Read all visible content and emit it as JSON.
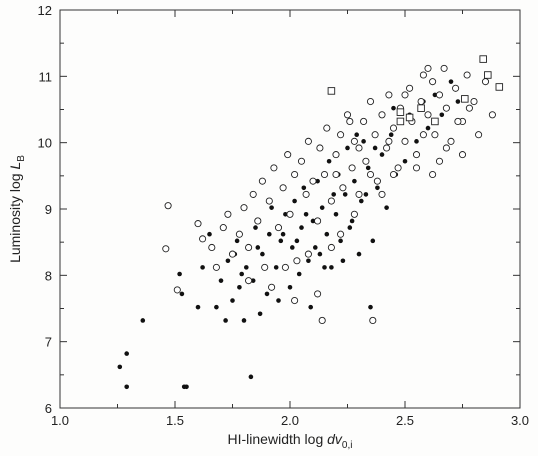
{
  "chart_data": {
    "type": "scatter",
    "title": "",
    "xlabel_main": "HI-linewidth  log ",
    "xlabel_var": "dv",
    "xlabel_sub": "0,i",
    "ylabel_main": "Luminosity  log ",
    "ylabel_var": "L",
    "ylabel_sub": "B",
    "xlim": [
      1.0,
      3.0
    ],
    "ylim": [
      6,
      12
    ],
    "x_ticks": [
      1.0,
      1.5,
      2.0,
      2.5,
      3.0
    ],
    "x_tick_labels": [
      "1.0",
      "1.5",
      "2.0",
      "2.5",
      "3.0"
    ],
    "y_ticks": [
      6,
      7,
      8,
      9,
      10,
      11,
      12
    ],
    "y_tick_labels": [
      "6",
      "7",
      "8",
      "9",
      "10",
      "11",
      "12"
    ],
    "grid": false,
    "legend": "none",
    "series": [
      {
        "marker": "filled-circle",
        "points": [
          [
            1.26,
            6.62
          ],
          [
            1.29,
            6.82
          ],
          [
            1.29,
            6.32
          ],
          [
            1.36,
            7.32
          ],
          [
            1.52,
            8.02
          ],
          [
            1.53,
            7.72
          ],
          [
            1.55,
            6.32
          ],
          [
            1.54,
            6.32
          ],
          [
            1.6,
            7.52
          ],
          [
            1.62,
            8.12
          ],
          [
            1.65,
            8.62
          ],
          [
            1.68,
            7.52
          ],
          [
            1.7,
            7.92
          ],
          [
            1.72,
            7.32
          ],
          [
            1.73,
            8.22
          ],
          [
            1.75,
            7.62
          ],
          [
            1.77,
            8.52
          ],
          [
            1.78,
            7.82
          ],
          [
            1.8,
            7.32
          ],
          [
            1.81,
            8.12
          ],
          [
            1.83,
            6.47
          ],
          [
            1.84,
            7.92
          ],
          [
            1.85,
            8.72
          ],
          [
            1.87,
            7.42
          ],
          [
            1.88,
            8.32
          ],
          [
            1.9,
            7.72
          ],
          [
            1.91,
            8.62
          ],
          [
            1.92,
            9.02
          ],
          [
            1.94,
            8.12
          ],
          [
            1.95,
            7.62
          ],
          [
            1.96,
            8.52
          ],
          [
            1.98,
            8.92
          ],
          [
            2.0,
            7.82
          ],
          [
            2.01,
            8.42
          ],
          [
            2.02,
            9.12
          ],
          [
            2.04,
            8.02
          ],
          [
            2.05,
            8.72
          ],
          [
            2.06,
            9.32
          ],
          [
            2.08,
            8.22
          ],
          [
            2.09,
            7.52
          ],
          [
            2.1,
            8.82
          ],
          [
            2.12,
            9.42
          ],
          [
            2.13,
            8.32
          ],
          [
            2.14,
            9.02
          ],
          [
            2.16,
            8.62
          ],
          [
            2.17,
            9.72
          ],
          [
            2.18,
            8.12
          ],
          [
            2.2,
            8.92
          ],
          [
            2.21,
            9.52
          ],
          [
            2.22,
            8.52
          ],
          [
            2.24,
            9.22
          ],
          [
            2.25,
            9.92
          ],
          [
            2.26,
            8.72
          ],
          [
            2.28,
            9.42
          ],
          [
            2.3,
            8.32
          ],
          [
            2.31,
            9.12
          ],
          [
            2.32,
            10.02
          ],
          [
            2.34,
            9.62
          ],
          [
            2.36,
            8.52
          ],
          [
            2.38,
            9.32
          ],
          [
            2.4,
            9.82
          ],
          [
            2.42,
            9.02
          ],
          [
            2.44,
            10.12
          ],
          [
            2.46,
            9.52
          ],
          [
            2.48,
            10.32
          ],
          [
            2.5,
            9.72
          ],
          [
            2.52,
            10.42
          ],
          [
            2.55,
            10.02
          ],
          [
            2.58,
            10.62
          ],
          [
            2.6,
            10.22
          ],
          [
            2.63,
            10.72
          ],
          [
            2.66,
            10.42
          ],
          [
            2.7,
            10.92
          ],
          [
            2.73,
            10.62
          ],
          [
            1.97,
            8.62
          ],
          [
            2.03,
            8.52
          ],
          [
            2.07,
            8.92
          ],
          [
            2.11,
            8.42
          ],
          [
            2.15,
            8.12
          ],
          [
            2.19,
            9.22
          ],
          [
            2.23,
            8.22
          ],
          [
            2.27,
            8.82
          ],
          [
            2.33,
            9.22
          ],
          [
            2.37,
            9.92
          ],
          [
            1.86,
            8.42
          ],
          [
            1.79,
            8.02
          ],
          [
            1.76,
            8.32
          ],
          [
            2.35,
            7.52
          ],
          [
            2.29,
            10.12
          ],
          [
            2.45,
            10.52
          ]
        ]
      },
      {
        "marker": "open-circle",
        "points": [
          [
            1.47,
            9.05
          ],
          [
            1.46,
            8.4
          ],
          [
            1.51,
            7.78
          ],
          [
            1.6,
            8.78
          ],
          [
            1.62,
            8.55
          ],
          [
            1.66,
            8.42
          ],
          [
            1.68,
            8.12
          ],
          [
            1.71,
            8.72
          ],
          [
            1.73,
            8.92
          ],
          [
            1.75,
            8.32
          ],
          [
            1.78,
            8.62
          ],
          [
            1.8,
            9.02
          ],
          [
            1.82,
            8.42
          ],
          [
            1.84,
            9.22
          ],
          [
            1.86,
            8.82
          ],
          [
            1.88,
            9.42
          ],
          [
            1.89,
            8.12
          ],
          [
            1.91,
            9.12
          ],
          [
            1.93,
            9.62
          ],
          [
            1.95,
            8.72
          ],
          [
            1.97,
            9.32
          ],
          [
            1.99,
            9.82
          ],
          [
            2.0,
            8.92
          ],
          [
            2.02,
            9.52
          ],
          [
            2.03,
            8.22
          ],
          [
            2.05,
            9.72
          ],
          [
            2.07,
            9.22
          ],
          [
            2.08,
            10.02
          ],
          [
            2.1,
            9.42
          ],
          [
            2.12,
            8.82
          ],
          [
            2.13,
            9.92
          ],
          [
            2.15,
            9.52
          ],
          [
            2.16,
            10.22
          ],
          [
            2.18,
            9.12
          ],
          [
            2.2,
            9.82
          ],
          [
            2.22,
            10.12
          ],
          [
            2.23,
            9.32
          ],
          [
            2.25,
            10.42
          ],
          [
            2.27,
            9.62
          ],
          [
            2.28,
            10.02
          ],
          [
            2.3,
            9.22
          ],
          [
            2.32,
            10.32
          ],
          [
            2.33,
            9.72
          ],
          [
            2.35,
            10.62
          ],
          [
            2.37,
            10.12
          ],
          [
            2.38,
            9.42
          ],
          [
            2.4,
            10.42
          ],
          [
            2.42,
            9.92
          ],
          [
            2.43,
            10.72
          ],
          [
            2.45,
            10.22
          ],
          [
            2.47,
            9.62
          ],
          [
            2.48,
            10.52
          ],
          [
            2.5,
            10.02
          ],
          [
            2.52,
            10.82
          ],
          [
            2.53,
            10.32
          ],
          [
            2.55,
            9.82
          ],
          [
            2.57,
            10.62
          ],
          [
            2.58,
            11.02
          ],
          [
            2.6,
            10.42
          ],
          [
            2.62,
            10.92
          ],
          [
            2.63,
            10.12
          ],
          [
            2.65,
            10.72
          ],
          [
            2.67,
            11.12
          ],
          [
            2.68,
            10.52
          ],
          [
            2.7,
            10.02
          ],
          [
            2.72,
            10.82
          ],
          [
            2.75,
            10.32
          ],
          [
            2.77,
            11.02
          ],
          [
            2.8,
            10.62
          ],
          [
            2.82,
            10.12
          ],
          [
            2.85,
            10.92
          ],
          [
            2.88,
            10.42
          ],
          [
            2.6,
            11.12
          ],
          [
            2.62,
            9.52
          ],
          [
            2.55,
            9.62
          ],
          [
            2.45,
            9.52
          ],
          [
            2.4,
            9.22
          ],
          [
            2.35,
            9.52
          ],
          [
            2.28,
            8.92
          ],
          [
            2.22,
            8.62
          ],
          [
            2.18,
            8.42
          ],
          [
            2.12,
            7.72
          ],
          [
            2.08,
            8.32
          ],
          [
            2.02,
            7.62
          ],
          [
            1.98,
            8.12
          ],
          [
            1.92,
            7.82
          ],
          [
            1.82,
            7.92
          ],
          [
            2.14,
            7.32
          ],
          [
            2.36,
            7.32
          ],
          [
            2.75,
            9.82
          ],
          [
            2.68,
            9.92
          ],
          [
            2.43,
            10.02
          ],
          [
            2.3,
            9.92
          ],
          [
            2.26,
            10.32
          ],
          [
            2.5,
            10.72
          ],
          [
            2.58,
            10.12
          ],
          [
            2.65,
            9.72
          ],
          [
            2.73,
            10.32
          ],
          [
            2.78,
            10.52
          ],
          [
            2.2,
            9.52
          ]
        ]
      },
      {
        "marker": "open-square",
        "points": [
          [
            2.18,
            10.78
          ],
          [
            2.48,
            10.46
          ],
          [
            2.52,
            10.38
          ],
          [
            2.57,
            10.52
          ],
          [
            2.63,
            10.32
          ],
          [
            2.76,
            10.66
          ],
          [
            2.84,
            11.26
          ],
          [
            2.86,
            11.02
          ],
          [
            2.91,
            10.84
          ],
          [
            2.48,
            10.32
          ]
        ]
      }
    ]
  }
}
